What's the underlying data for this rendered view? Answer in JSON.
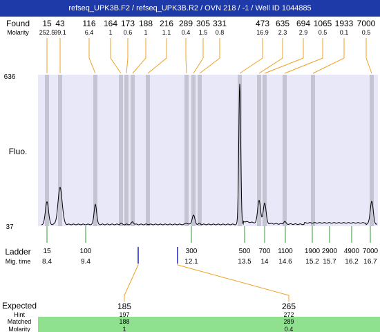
{
  "title": "refseq_UPK3B.F2 / refseq_UPK3B.R2 / OVN 218 / -1 / Well ID 1044885",
  "labels": {
    "found": "Found",
    "molarity": "Molarity",
    "fluo": "Fluo.",
    "ladder": "Ladder",
    "mig_time": "Mig. time",
    "expected": "Expected",
    "hint": "Hint",
    "matched": "Matched",
    "molarity_bottom": "Molarity"
  },
  "colors": {
    "title_bg": "#1d3aa8",
    "plot_bg": "#e8e8f8",
    "band": "#c4c4d2",
    "found_leader": "#f0a020",
    "ladder_tick": "#2e9a2e",
    "expected_tick": "#2020c0",
    "matched_row": "#8fe08f"
  },
  "chart_data": {
    "type": "line",
    "title": "",
    "xlabel": "",
    "ylabel": "Fluo.",
    "ylim": [
      37,
      636
    ],
    "yticks": [
      "636",
      "37"
    ],
    "found": {
      "sizes": [
        "15",
        "43",
        "116",
        "164",
        "173",
        "188",
        "216",
        "289",
        "305",
        "331",
        "473",
        "635",
        "694",
        "1065",
        "1933",
        "7000"
      ],
      "molarity": [
        "252.5",
        "99.1",
        "6.4",
        "1",
        "0.6",
        "1",
        "1.1",
        "0.4",
        "1.5",
        "0.8",
        "16.9",
        "2.3",
        "2.9",
        "0.5",
        "0.1",
        "0.5"
      ]
    },
    "ladder": {
      "sizes": [
        "15",
        "100",
        "300",
        "500",
        "700",
        "1100",
        "1900",
        "2900",
        "4900",
        "7000"
      ],
      "mig_time": [
        "8.4",
        "9.4",
        "12.1",
        "13.5",
        "14",
        "14.6",
        "15.2",
        "15.7",
        "16.2",
        "16.7"
      ]
    },
    "expected": [
      {
        "size": "185",
        "hint": "197",
        "matched": "188",
        "molarity": "1"
      },
      {
        "size": "265",
        "hint": "272",
        "matched": "289",
        "molarity": "0.4"
      }
    ]
  }
}
